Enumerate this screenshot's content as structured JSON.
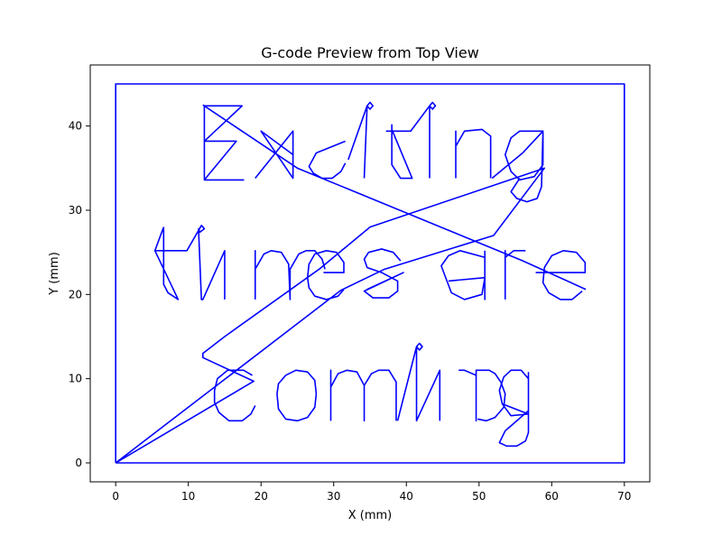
{
  "chart_data": {
    "type": "line",
    "title": "G-code Preview from Top View",
    "xlabel": "X (mm)",
    "ylabel": "Y (mm)",
    "xlim": [
      -3.5,
      73.5
    ],
    "ylim": [
      -2.25,
      47.25
    ],
    "xticks": [
      0,
      10,
      20,
      30,
      40,
      50,
      60,
      70
    ],
    "yticks": [
      0,
      10,
      20,
      30,
      40
    ],
    "grid": false,
    "series_color": "#0000ff",
    "series": [
      {
        "label": "border",
        "points": [
          [
            0,
            0
          ],
          [
            70,
            0
          ],
          [
            70,
            45
          ],
          [
            0,
            45
          ],
          [
            0,
            0
          ]
        ]
      },
      {
        "label": "travel-moves",
        "points": [
          [
            0,
            0
          ],
          [
            19,
            9.7
          ],
          [
            12,
            12.5
          ],
          [
            12,
            13
          ],
          [
            15,
            15
          ],
          [
            28,
            23
          ],
          [
            35,
            28
          ],
          [
            59,
            35
          ],
          [
            52,
            27
          ],
          [
            37,
            23
          ],
          [
            31,
            20.5
          ],
          [
            0,
            0
          ]
        ]
      },
      {
        "label": "diagonal-strokes",
        "points": [
          [
            12,
            42.5
          ],
          [
            25,
            35
          ],
          [
            56,
            24
          ],
          [
            64.7,
            20.6
          ]
        ]
      },
      {
        "label": "E",
        "points": [
          [
            17.4,
            42.4
          ],
          [
            12.2,
            42.4
          ],
          [
            12.2,
            33.6
          ],
          [
            17.6,
            33.6
          ],
          [
            12.2,
            33.6
          ],
          [
            16.6,
            38.2
          ],
          [
            12.2,
            38.2
          ],
          [
            12.2,
            42.4
          ],
          [
            17.4,
            42.4
          ],
          [
            12.2,
            38.2
          ]
        ]
      },
      {
        "label": "x",
        "points": [
          [
            19.2,
            33.8
          ],
          [
            24.4,
            39.4
          ],
          [
            24.4,
            33.8
          ],
          [
            24.4,
            36.6
          ],
          [
            20,
            39.4
          ],
          [
            24.4,
            33.8
          ]
        ]
      },
      {
        "label": "c",
        "points": [
          [
            31.6,
            38.2
          ],
          [
            27.6,
            36.8
          ],
          [
            26.6,
            35.2
          ],
          [
            27.2,
            34.4
          ],
          [
            28.4,
            33.8
          ],
          [
            29.8,
            33.8
          ],
          [
            31,
            34.6
          ],
          [
            31.6,
            35.6
          ]
        ]
      },
      {
        "label": "i",
        "points": [
          [
            34.2,
            33.8
          ],
          [
            34.6,
            42.4
          ],
          [
            35,
            42.8
          ],
          [
            35.4,
            42.4
          ],
          [
            35,
            42
          ],
          [
            34.6,
            42.4
          ],
          [
            32,
            36
          ]
        ]
      },
      {
        "label": "t",
        "points": [
          [
            37.2,
            39.4
          ],
          [
            40.6,
            39.4
          ],
          [
            43.2,
            42.4
          ],
          [
            43.6,
            42.8
          ],
          [
            44,
            42.4
          ],
          [
            43.6,
            42
          ],
          [
            43.2,
            42.4
          ],
          [
            43.2,
            33.8
          ]
        ]
      },
      {
        "label": "k",
        "points": [
          [
            38,
            40.2
          ],
          [
            38,
            35.4
          ],
          [
            39.2,
            33.8
          ],
          [
            40.8,
            33.8
          ],
          [
            38,
            39.6
          ]
        ]
      },
      {
        "label": "n",
        "points": [
          [
            46.8,
            33.8
          ],
          [
            46.8,
            39.4
          ],
          [
            46.8,
            37.6
          ],
          [
            48,
            39.4
          ],
          [
            50.4,
            39.6
          ],
          [
            51.6,
            38.8
          ],
          [
            51.6,
            33.8
          ]
        ]
      },
      {
        "label": "g-top",
        "points": [
          [
            51.8,
            33.8
          ],
          [
            56,
            36.8
          ],
          [
            58.8,
            39.4
          ],
          [
            58.8,
            35.4
          ],
          [
            57.6,
            34
          ],
          [
            55.6,
            33.6
          ],
          [
            54.4,
            34.6
          ],
          [
            53.6,
            36.6
          ],
          [
            54.4,
            38.6
          ],
          [
            55.6,
            39.4
          ],
          [
            58.8,
            39.4
          ],
          [
            58.6,
            32.8
          ],
          [
            58,
            31.4
          ],
          [
            56.6,
            31
          ],
          [
            55.2,
            31.4
          ],
          [
            54.4,
            32.2
          ],
          [
            55.6,
            33.8
          ]
        ]
      },
      {
        "label": "t-2",
        "points": [
          [
            5.4,
            25.2
          ],
          [
            9.8,
            25.2
          ],
          [
            11.8,
            28.2
          ],
          [
            12.2,
            27.8
          ],
          [
            11.6,
            27.4
          ],
          [
            11.4,
            27.8
          ],
          [
            11.8,
            19.4
          ],
          [
            12,
            19.4
          ],
          [
            15,
            25.2
          ],
          [
            15,
            19.4
          ]
        ]
      },
      {
        "label": "t-stem",
        "points": [
          [
            6.6,
            28
          ],
          [
            6.6,
            21.2
          ],
          [
            7.2,
            20.2
          ],
          [
            8.6,
            19.4
          ],
          [
            5.4,
            25.2
          ],
          [
            6.6,
            28
          ]
        ]
      },
      {
        "label": "m",
        "points": [
          [
            19.2,
            19.4
          ],
          [
            19.2,
            25.2
          ],
          [
            19.2,
            23
          ],
          [
            20.4,
            24.8
          ],
          [
            21.4,
            25.2
          ],
          [
            22.8,
            25
          ],
          [
            23.8,
            23.6
          ],
          [
            24,
            19.4
          ],
          [
            24,
            23
          ],
          [
            25.2,
            24.8
          ],
          [
            26.2,
            25.2
          ],
          [
            27.4,
            25.2
          ],
          [
            28.4,
            24.2
          ],
          [
            28.8,
            23
          ]
        ]
      },
      {
        "label": "e",
        "points": [
          [
            28.6,
            22.6
          ],
          [
            31.4,
            22.6
          ],
          [
            31.4,
            23.8
          ],
          [
            30.4,
            25
          ],
          [
            29,
            25.2
          ],
          [
            27.4,
            24.8
          ],
          [
            26.6,
            23.6
          ],
          [
            26.4,
            22
          ],
          [
            26.6,
            20.8
          ],
          [
            27.4,
            19.8
          ],
          [
            29,
            19.4
          ],
          [
            30.6,
            19.8
          ],
          [
            31.4,
            20.6
          ]
        ]
      },
      {
        "label": "s",
        "points": [
          [
            39.2,
            24
          ],
          [
            38.2,
            25
          ],
          [
            36.6,
            25.4
          ],
          [
            34.8,
            25
          ],
          [
            34.2,
            24.2
          ],
          [
            34.6,
            23.2
          ],
          [
            36.6,
            22.6
          ],
          [
            38.8,
            21.6
          ],
          [
            38.8,
            20.4
          ],
          [
            37.6,
            19.6
          ],
          [
            35.4,
            19.6
          ],
          [
            34.2,
            20.4
          ],
          [
            39.6,
            22.6
          ],
          [
            34.6,
            20.6
          ]
        ]
      },
      {
        "label": "a",
        "points": [
          [
            50.8,
            25.2
          ],
          [
            50.8,
            19.4
          ],
          [
            50.8,
            24.4
          ],
          [
            47.4,
            25.2
          ],
          [
            45.8,
            24.6
          ],
          [
            44.8,
            23.4
          ],
          [
            46.2,
            20.2
          ],
          [
            48,
            19.4
          ],
          [
            50.4,
            20
          ],
          [
            50.8,
            22
          ],
          [
            45.8,
            21.6
          ]
        ]
      },
      {
        "label": "r",
        "points": [
          [
            53.6,
            19.4
          ],
          [
            53.6,
            25.2
          ],
          [
            53.6,
            24.4
          ],
          [
            54.8,
            25.2
          ],
          [
            56.4,
            25.2
          ]
        ]
      },
      {
        "label": "e-2",
        "points": [
          [
            57.8,
            22.6
          ],
          [
            64.6,
            22.6
          ],
          [
            64.6,
            23.8
          ],
          [
            63.4,
            25
          ],
          [
            61.6,
            25.2
          ],
          [
            60,
            24.6
          ],
          [
            59,
            23.2
          ],
          [
            58.8,
            21.4
          ],
          [
            59.6,
            20.2
          ],
          [
            61.2,
            19.4
          ],
          [
            62.8,
            19.4
          ],
          [
            64.2,
            20.4
          ]
        ]
      },
      {
        "label": "c-2",
        "points": [
          [
            18.8,
            10.4
          ],
          [
            17.6,
            11
          ],
          [
            15.4,
            11
          ],
          [
            14,
            10
          ],
          [
            13.6,
            8.6
          ],
          [
            13.6,
            7.2
          ],
          [
            14.2,
            6
          ],
          [
            15.6,
            5
          ],
          [
            17.4,
            5
          ],
          [
            18.6,
            5.8
          ],
          [
            19.2,
            6.8
          ]
        ]
      },
      {
        "label": "o",
        "points": [
          [
            22.2,
            8.2
          ],
          [
            22.4,
            6.4
          ],
          [
            23.4,
            5.2
          ],
          [
            25,
            5
          ],
          [
            26.4,
            5.4
          ],
          [
            27.4,
            6.6
          ],
          [
            27.6,
            8.2
          ],
          [
            27.4,
            9.8
          ],
          [
            26.4,
            10.8
          ],
          [
            24.8,
            11
          ],
          [
            23.4,
            10.4
          ],
          [
            22.4,
            9.4
          ],
          [
            22.2,
            8.2
          ]
        ]
      },
      {
        "label": "m-2",
        "points": [
          [
            29.6,
            5
          ],
          [
            29.6,
            11
          ],
          [
            29.6,
            9
          ],
          [
            30.6,
            10.6
          ],
          [
            31.8,
            11
          ],
          [
            33.2,
            10.8
          ],
          [
            34.2,
            9.2
          ],
          [
            34.2,
            5
          ],
          [
            34.2,
            9.2
          ],
          [
            35.2,
            10.6
          ],
          [
            36.2,
            11
          ],
          [
            37.6,
            11
          ],
          [
            38.6,
            9.6
          ],
          [
            38.6,
            5
          ]
        ]
      },
      {
        "label": "i-2",
        "points": [
          [
            38.8,
            5
          ],
          [
            41.4,
            13.8
          ],
          [
            41.8,
            14.2
          ],
          [
            42.2,
            13.8
          ],
          [
            41.8,
            13.4
          ],
          [
            41.4,
            13.8
          ],
          [
            41.4,
            5
          ],
          [
            41.4,
            5
          ],
          [
            44.6,
            11
          ],
          [
            44.6,
            5
          ]
        ]
      },
      {
        "label": "n-2",
        "points": [
          [
            47.2,
            11
          ],
          [
            48,
            11
          ],
          [
            49.6,
            10.4
          ],
          [
            49.6,
            5
          ],
          [
            49.6,
            11
          ],
          [
            51.4,
            11
          ],
          [
            52.2,
            10.6
          ],
          [
            53,
            9.6
          ],
          [
            53.6,
            8.2
          ],
          [
            53.4,
            6.6
          ],
          [
            52.2,
            5.4
          ],
          [
            51,
            5
          ],
          [
            49.8,
            5.2
          ]
        ]
      },
      {
        "label": "g-bottom",
        "points": [
          [
            56.8,
            10.8
          ],
          [
            56.8,
            3.6
          ],
          [
            56.4,
            2.6
          ],
          [
            55.2,
            2
          ],
          [
            53.8,
            2
          ],
          [
            52.8,
            2.4
          ],
          [
            53.6,
            3.8
          ],
          [
            56.8,
            6.2
          ],
          [
            56.8,
            10
          ],
          [
            55.8,
            11
          ],
          [
            54.4,
            11
          ],
          [
            53.4,
            10.2
          ],
          [
            52.8,
            8.6
          ],
          [
            53.2,
            7
          ],
          [
            54.4,
            5.6
          ],
          [
            56.8,
            5.8
          ],
          [
            53.2,
            7
          ]
        ]
      }
    ]
  }
}
